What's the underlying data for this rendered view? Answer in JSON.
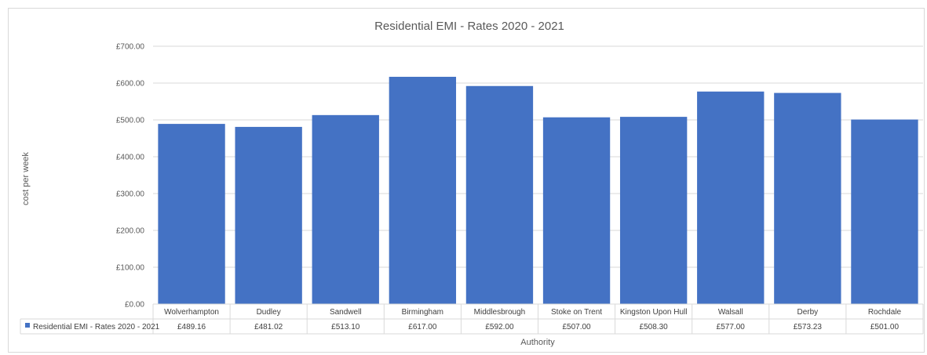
{
  "chart_data": {
    "type": "bar",
    "title": "Residential EMI - Rates 2020 - 2021",
    "xlabel": "Authority",
    "ylabel": "cost per week",
    "ylim": [
      0,
      700
    ],
    "yticks": [
      "£0.00",
      "£100.00",
      "£200.00",
      "£300.00",
      "£400.00",
      "£500.00",
      "£600.00",
      "£700.00"
    ],
    "grid": true,
    "legend": "data-table",
    "bar_color": "#4472C4",
    "categories": [
      "Wolverhampton",
      "Dudley",
      "Sandwell",
      "Birmingham",
      "Middlesbrough",
      "Stoke on Trent",
      "Kingston Upon Hull",
      "Walsall",
      "Derby",
      "Rochdale"
    ],
    "series": [
      {
        "name": "Residential EMI - Rates 2020 - 2021",
        "values": [
          489.16,
          481.02,
          513.1,
          617.0,
          592.0,
          507.0,
          508.3,
          577.0,
          573.23,
          501.0
        ],
        "labels": [
          "£489.16",
          "£481.02",
          "£513.10",
          "£617.00",
          "£592.00",
          "£507.00",
          "£508.30",
          "£577.00",
          "£573.23",
          "£501.00"
        ]
      }
    ]
  }
}
